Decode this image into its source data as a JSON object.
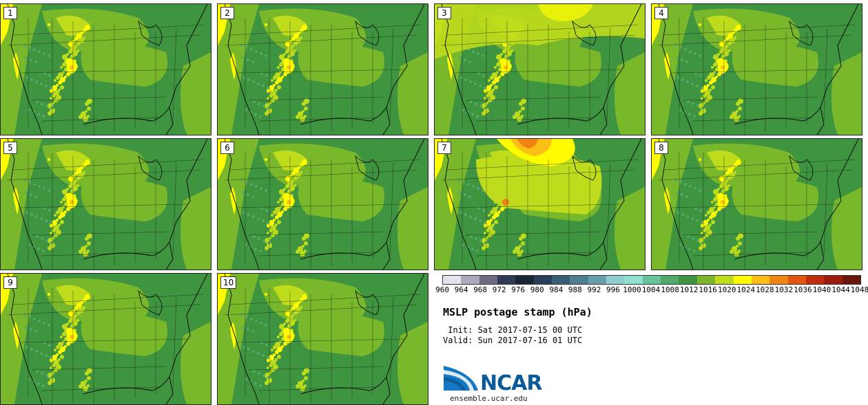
{
  "panels": [
    {
      "label": "1",
      "variant": "normal"
    },
    {
      "label": "2",
      "variant": "normal"
    },
    {
      "label": "3",
      "variant": "light"
    },
    {
      "label": "4",
      "variant": "normal"
    },
    {
      "label": "5",
      "variant": "normal"
    },
    {
      "label": "6",
      "variant": "normal"
    },
    {
      "label": "7",
      "variant": "high"
    },
    {
      "label": "8",
      "variant": "normal"
    },
    {
      "label": "9",
      "variant": "normal"
    },
    {
      "label": "10",
      "variant": "normal"
    }
  ],
  "colorbar": {
    "ticks": [
      "960",
      "964",
      "968",
      "972",
      "976",
      "980",
      "984",
      "988",
      "992",
      "996",
      "1000",
      "1004",
      "1008",
      "1012",
      "1016",
      "1020",
      "1024",
      "1028",
      "1032",
      "1036",
      "1040",
      "1044",
      "1048"
    ],
    "colors": [
      "#e3e3ee",
      "#a9a9be",
      "#6b6b84",
      "#2e3a56",
      "#1a2538",
      "#2a3f5c",
      "#3a5d78",
      "#4f7f93",
      "#66a1ab",
      "#8fcfd1",
      "#8fe0cf",
      "#67c39c",
      "#52aa6a",
      "#3f9440",
      "#7ab82b",
      "#bedc1c",
      "#fffc00",
      "#fbbf16",
      "#f08412",
      "#e3560f",
      "#c32b0c",
      "#9c1d0c",
      "#6b160a"
    ]
  },
  "title": "MSLP postage stamp (hPa)",
  "init": " Init: Sat 2017-07-15 00 UTC",
  "valid": "Valid: Sun 2017-07-16 01 UTC",
  "logo_text": "NCAR",
  "url": "ensemble.ucar.edu"
}
